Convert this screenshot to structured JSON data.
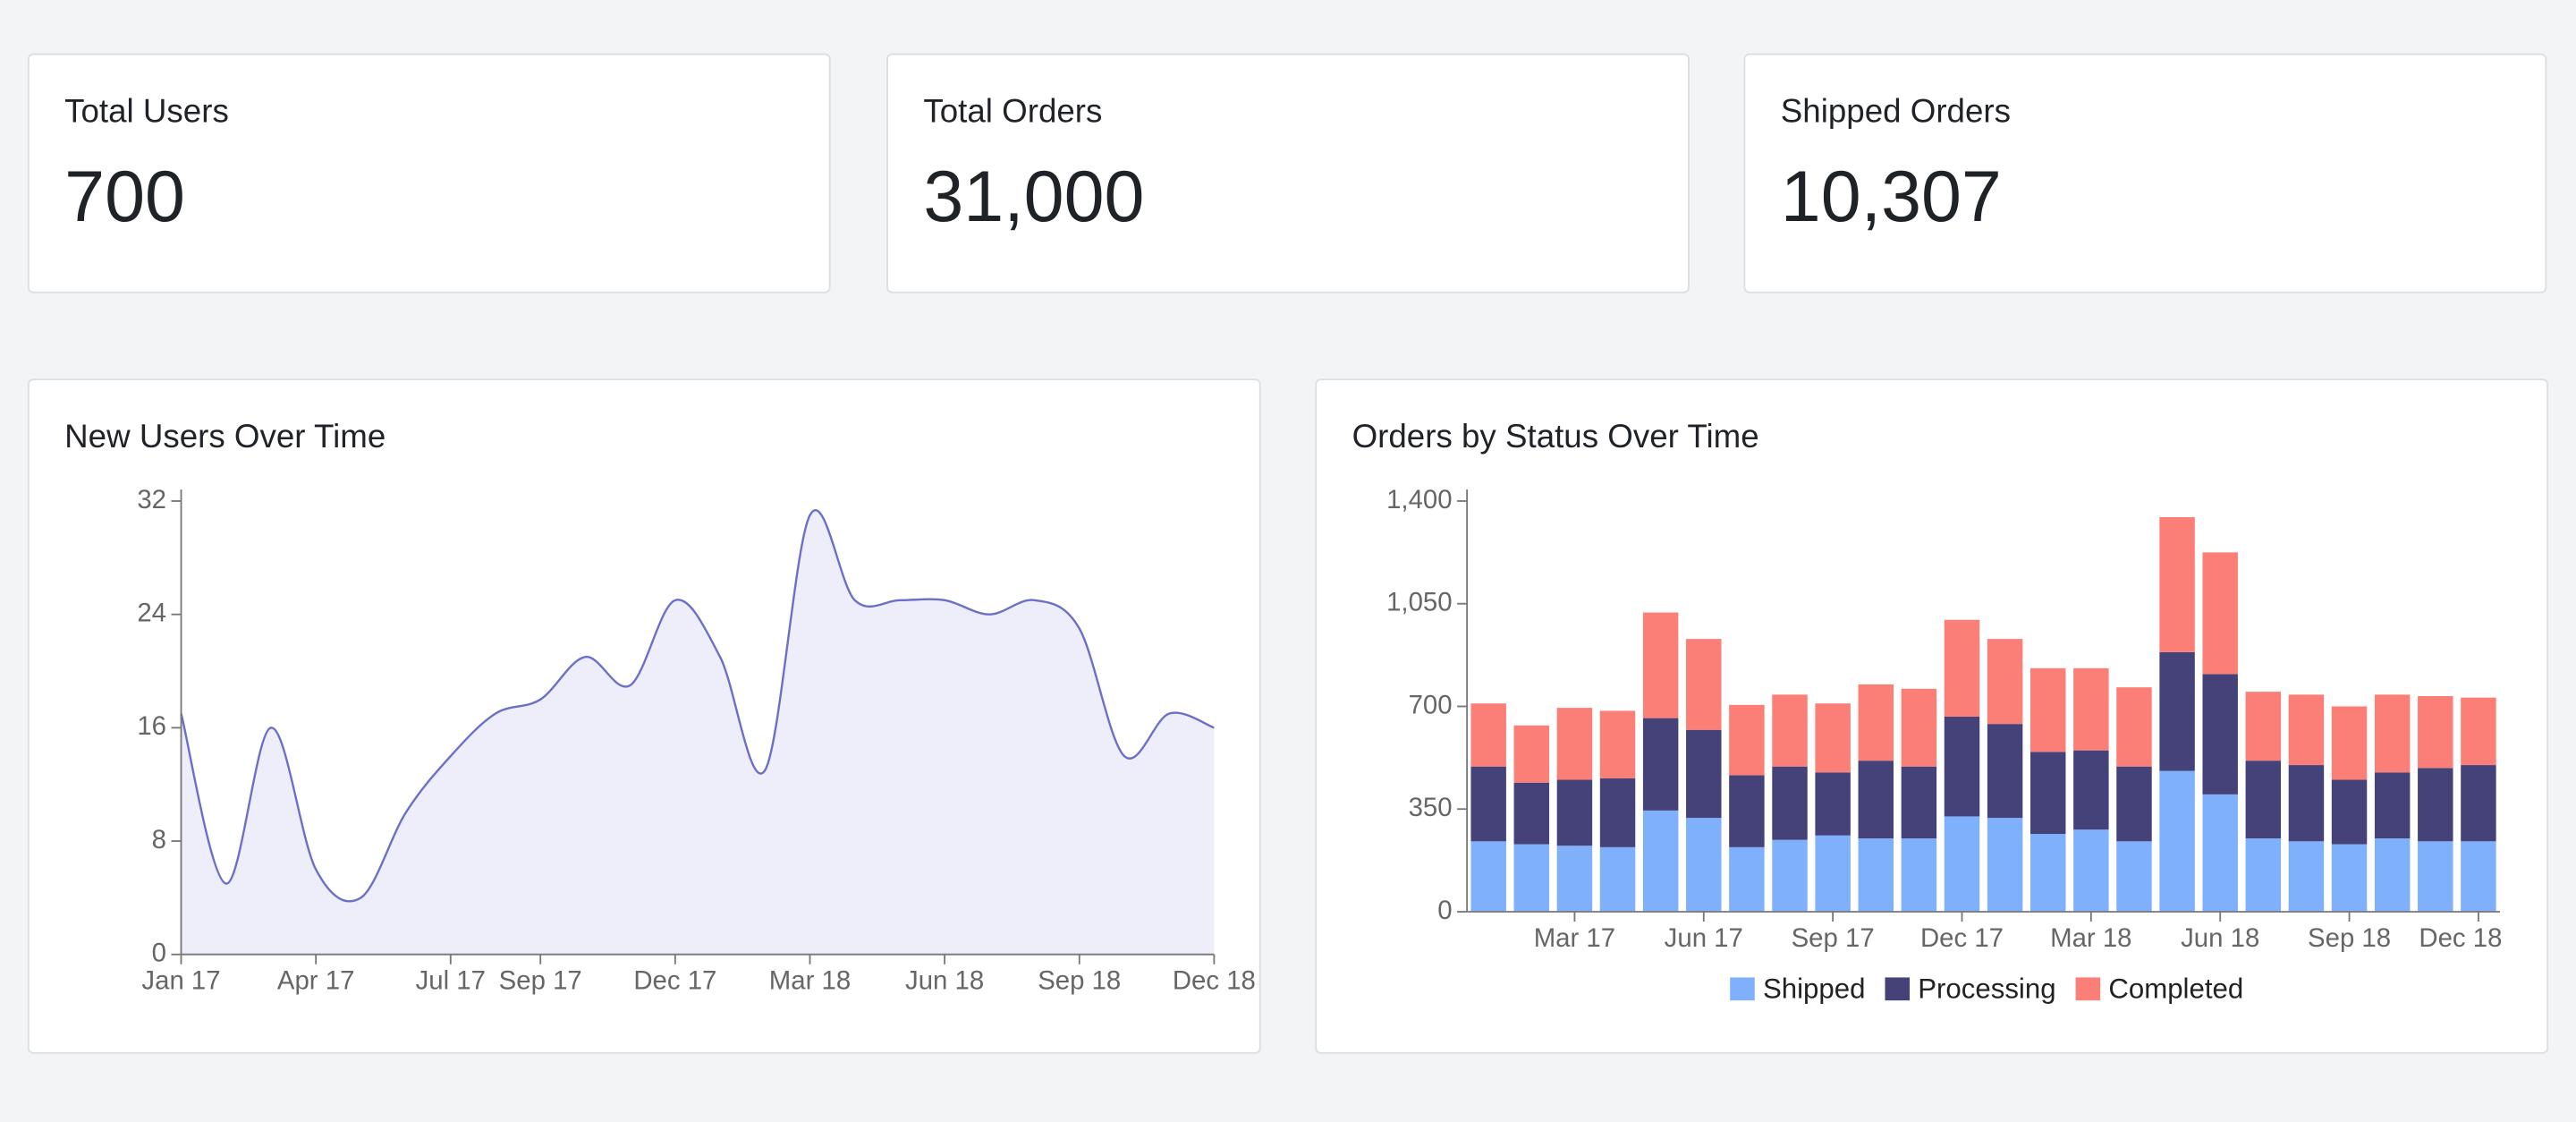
{
  "cards": [
    {
      "label": "Total Users",
      "value": "700"
    },
    {
      "label": "Total Orders",
      "value": "31,000"
    },
    {
      "label": "Shipped Orders",
      "value": "10,307"
    }
  ],
  "chart_data": [
    {
      "type": "area",
      "title": "New Users Over Time",
      "x": [
        "2017-01",
        "2017-02",
        "2017-03",
        "2017-04",
        "2017-05",
        "2017-06",
        "2017-07",
        "2017-08",
        "2017-09",
        "2017-10",
        "2017-11",
        "2017-12",
        "2018-01",
        "2018-02",
        "2018-03",
        "2018-04",
        "2018-05",
        "2018-06",
        "2018-07",
        "2018-08",
        "2018-09",
        "2018-10",
        "2018-11",
        "2018-12"
      ],
      "values": [
        17,
        5,
        16,
        6,
        4,
        10,
        14,
        17,
        18,
        21,
        19,
        25,
        21,
        13,
        31,
        25,
        25,
        25,
        24,
        25,
        23,
        14,
        17,
        16
      ],
      "color": "#6b6fc8",
      "fill_color": "#eeeefa",
      "ylim": [
        0,
        32
      ],
      "yticks": [
        0,
        8,
        16,
        24,
        32
      ],
      "xticks": [
        {
          "value": "2017-01",
          "label": "Jan 17"
        },
        {
          "value": "2017-04",
          "label": "Apr 17"
        },
        {
          "value": "2017-07",
          "label": "Jul 17"
        },
        {
          "value": "2017-09",
          "label": "Sep 17"
        },
        {
          "value": "2017-12",
          "label": "Dec 17"
        },
        {
          "value": "2018-03",
          "label": "Mar 18"
        },
        {
          "value": "2018-06",
          "label": "Jun 18"
        },
        {
          "value": "2018-09",
          "label": "Sep 18"
        },
        {
          "value": "2018-12",
          "label": "Dec 18"
        }
      ]
    },
    {
      "type": "stacked_bar",
      "title": "Orders by Status Over Time",
      "categories": [
        "2017-01",
        "2017-02",
        "2017-03",
        "2017-04",
        "2017-05",
        "2017-06",
        "2017-07",
        "2017-08",
        "2017-09",
        "2017-10",
        "2017-11",
        "2017-12",
        "2018-01",
        "2018-02",
        "2018-03",
        "2018-04",
        "2018-05",
        "2018-06",
        "2018-07",
        "2018-08",
        "2018-09",
        "2018-10",
        "2018-11",
        "2018-12"
      ],
      "series": [
        {
          "name": "Shipped",
          "color": "#7fb0fb",
          "values": [
            240,
            230,
            225,
            220,
            345,
            320,
            220,
            245,
            260,
            250,
            250,
            325,
            320,
            265,
            280,
            240,
            480,
            400,
            250,
            240,
            230,
            250,
            240,
            240
          ]
        },
        {
          "name": "Processing",
          "color": "#45427a",
          "values": [
            255,
            210,
            225,
            235,
            315,
            300,
            245,
            250,
            215,
            265,
            245,
            340,
            320,
            280,
            270,
            255,
            405,
            410,
            265,
            260,
            220,
            225,
            250,
            260
          ]
        },
        {
          "name": "Completed",
          "color": "#fb7f76",
          "values": [
            215,
            195,
            245,
            230,
            360,
            310,
            240,
            245,
            235,
            260,
            265,
            330,
            290,
            285,
            280,
            270,
            460,
            415,
            235,
            240,
            250,
            265,
            245,
            230
          ]
        }
      ],
      "ylim": [
        0,
        1400
      ],
      "yticks": [
        0,
        350,
        700,
        {
          "value": 1050,
          "label": "1,050"
        },
        {
          "value": 1400,
          "label": "1,400"
        }
      ],
      "xticks": [
        {
          "value": "2017-03",
          "label": "Mar 17"
        },
        {
          "value": "2017-06",
          "label": "Jun 17"
        },
        {
          "value": "2017-09",
          "label": "Sep 17"
        },
        {
          "value": "2017-12",
          "label": "Dec 17"
        },
        {
          "value": "2018-03",
          "label": "Mar 18"
        },
        {
          "value": "2018-06",
          "label": "Jun 18"
        },
        {
          "value": "2018-09",
          "label": "Sep 18"
        },
        {
          "value": "2018-12",
          "label": "Dec 18"
        }
      ],
      "legend": "bottom"
    }
  ]
}
